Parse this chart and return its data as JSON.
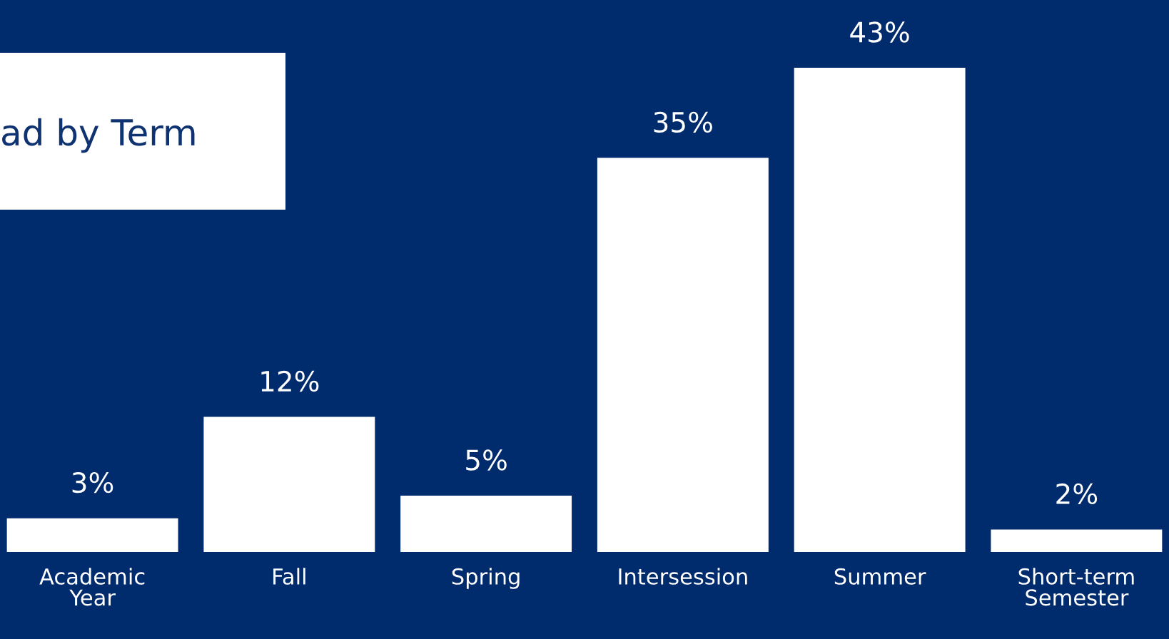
{
  "chart_data": {
    "type": "bar",
    "title": "ad by Term",
    "categories": [
      "Academic Year",
      "Fall",
      "Spring",
      "Intersession",
      "Summer",
      "Short-term Semester"
    ],
    "values": [
      3,
      12,
      5,
      35,
      43,
      2
    ],
    "value_labels": [
      "3%",
      "12%",
      "5%",
      "35%",
      "43%",
      "2%"
    ],
    "color": "#ffffff",
    "grid": false,
    "legend": false
  }
}
